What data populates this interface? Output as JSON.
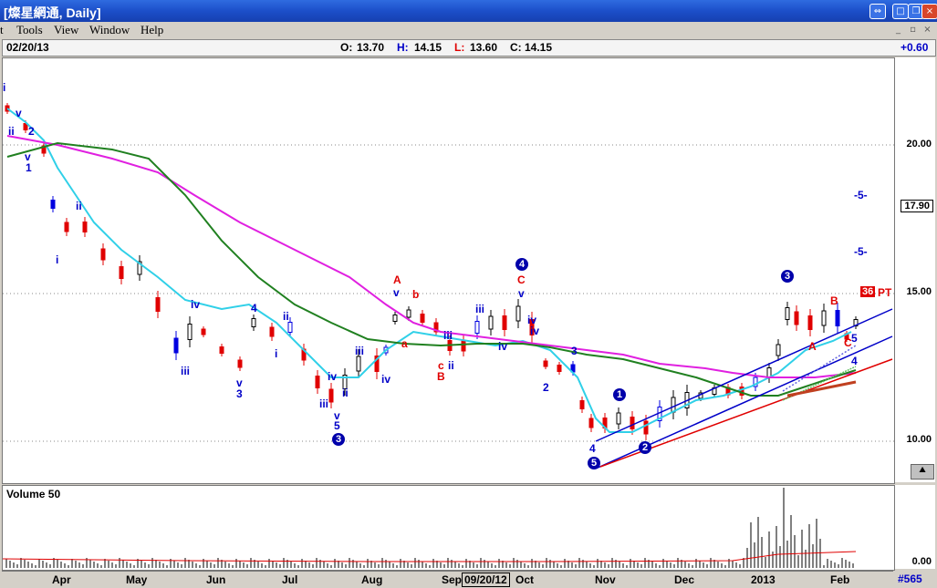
{
  "window": {
    "title": "[燦星網通, Daily]",
    "controls": [
      "restore",
      "maximize",
      "close"
    ],
    "inner_controls": [
      "minimize",
      "maximize",
      "close"
    ]
  },
  "menu": {
    "items": [
      "t",
      "Tools",
      "View",
      "Window",
      "Help"
    ]
  },
  "info": {
    "date": "02/20/13",
    "open_label": "O:",
    "open": "13.70",
    "high_label": "H:",
    "high": "14.15",
    "low_label": "L:",
    "low": "13.60",
    "close_label": "C:",
    "close": "14.15",
    "change": "+0.60"
  },
  "price_axis": {
    "labels": [
      "20.00",
      "15.00",
      "10.00"
    ],
    "current": "17.90",
    "marker_box": "36",
    "marker_text": "PT"
  },
  "volume": {
    "label": "Volume 50",
    "axis_label": "0.00"
  },
  "dates": {
    "months": [
      "Apr",
      "May",
      "Jun",
      "Jul",
      "Aug",
      "Sep",
      "Oct",
      "Nov",
      "Dec",
      "2013",
      "Feb"
    ],
    "cursor": "09/20/12",
    "bar_count": "#565"
  },
  "wave_labels": {
    "blue": [
      "i",
      "ii",
      "v",
      "v",
      "1",
      "2",
      "ii",
      "i",
      "iii",
      "iv",
      "v",
      "3",
      "4",
      "ii",
      "i",
      "iii",
      "iv",
      "ii",
      "iv",
      "iii",
      "v",
      "5",
      "v",
      "iv",
      "ii",
      "iii",
      "iv",
      "v",
      "iii",
      "iv",
      "2",
      "3",
      "4",
      "5",
      "4",
      "-5-",
      "-5-"
    ],
    "red": [
      "A",
      "a",
      "b",
      "c",
      "B",
      "C",
      "A",
      "B",
      "C"
    ],
    "circles": [
      "3",
      "4",
      "1",
      "2",
      "5",
      "3"
    ]
  },
  "colors": {
    "up": "#000000",
    "down": "#e00000",
    "blue_bar": "#0000e0",
    "cyan": "#30d0e8",
    "magenta": "#e020e0",
    "green": "#208020"
  }
}
